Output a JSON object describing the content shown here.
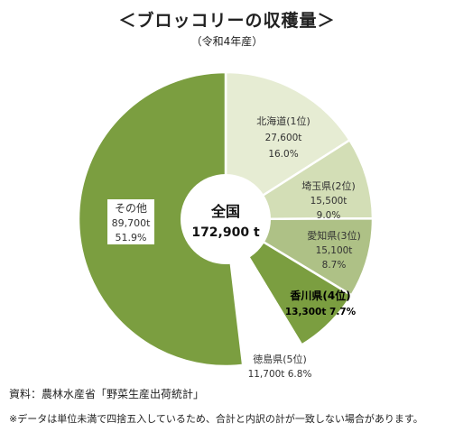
{
  "title": "＜ブロッコリーの収穫量＞",
  "subtitle": "（令和4年産）",
  "chart_data": {
    "type": "pie",
    "title": "＜ブロッコリーの収穫量＞",
    "subtitle": "（令和4年産）",
    "center_label": {
      "line1": "全国",
      "line2": "172,900 t"
    },
    "slices": [
      {
        "name": "北海道(1位)",
        "value": 27600,
        "value_label": "27,600t",
        "percent_label": "16.0%",
        "percent": 16.0,
        "color": "#e6ecd3"
      },
      {
        "name": "埼玉県(2位)",
        "value": 15500,
        "value_label": "15,500t",
        "percent_label": "9.0%",
        "percent": 9.0,
        "color": "#d3deb6"
      },
      {
        "name": "愛知県(3位)",
        "value": 15100,
        "value_label": "15,100t",
        "percent_label": "8.7%",
        "percent": 8.7,
        "color": "#aec186"
      },
      {
        "name": "香川県(4位)",
        "value": 13300,
        "value_label": "13,300t",
        "percent_label": "7.7%",
        "percent": 7.7,
        "color": "#7b9e40"
      },
      {
        "name": "徳島県(5位)",
        "value": 11700,
        "value_label": "11,700t",
        "percent_label": "6.8%",
        "percent": 6.8,
        "color": "#ffffff"
      },
      {
        "name": "その他",
        "value": 89700,
        "value_label": "89,700t",
        "percent_label": "51.9%",
        "percent": 51.9,
        "color": "#7b9e40"
      }
    ]
  },
  "source": "資料：農林水産省「野菜生産出荷統計」",
  "note": "※データは単位未満で四捨五入しているため、合計と内訳の計が一致しない場合があります。"
}
